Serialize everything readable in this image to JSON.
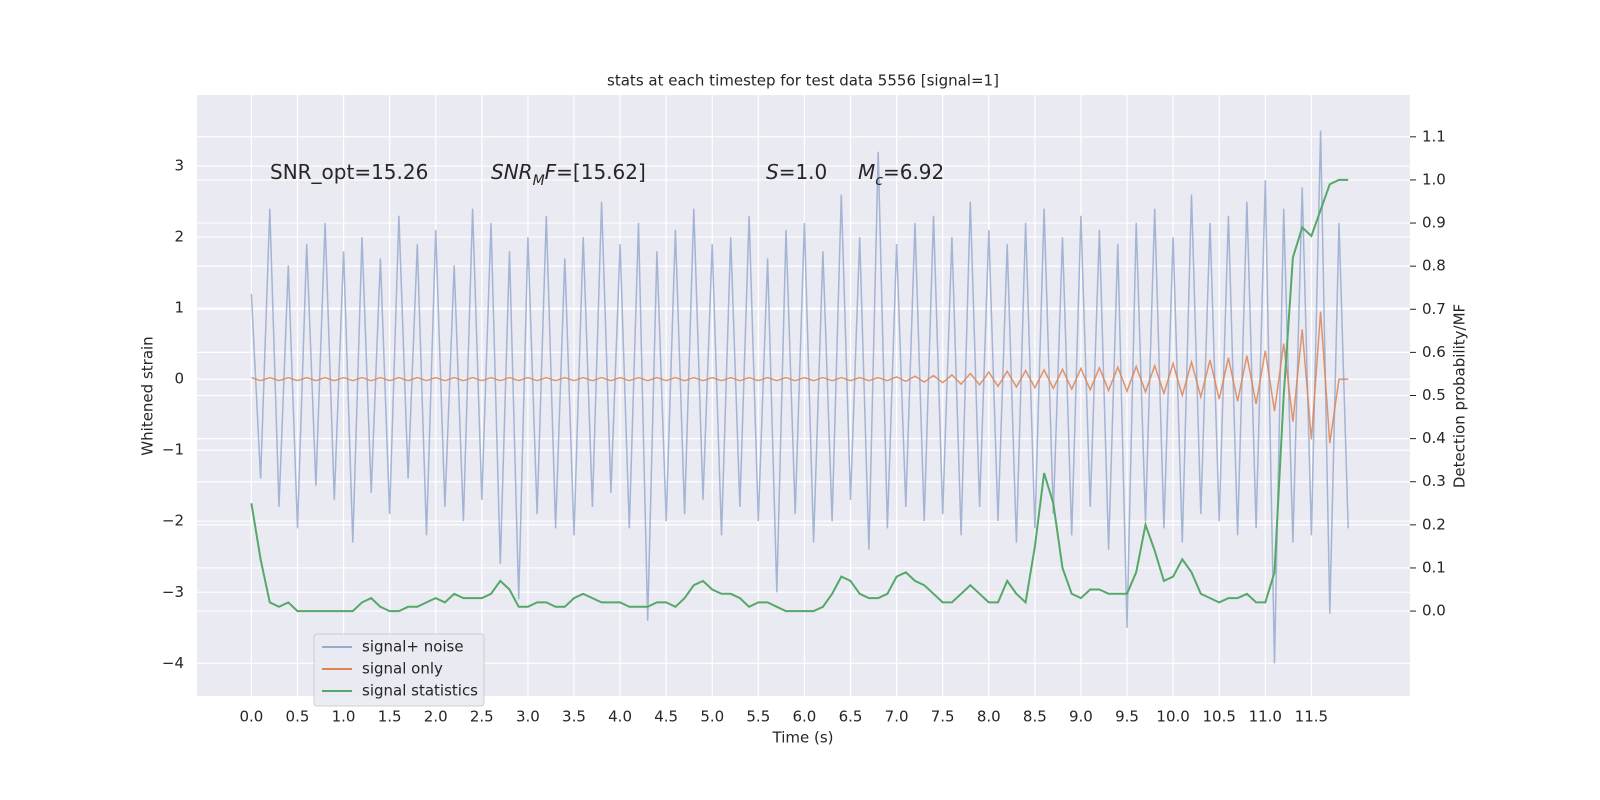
{
  "chart_data": {
    "type": "line",
    "title": "stats at each timestep for test data 5556 [signal=1]",
    "xlabel": "Time (s)",
    "ylabel": "Whitened strain",
    "y2label": "Detection probability/MF",
    "annotations": [
      [
        {
          "text": "SNR_opt=15.26"
        }
      ],
      [
        {
          "text": "SNR",
          "italic": true
        },
        {
          "text": "M",
          "italic": true,
          "sub": true
        },
        {
          "text": "F",
          "italic": true
        },
        {
          "text": "=[15.62]"
        }
      ],
      [
        {
          "text": "S",
          "italic": true
        },
        {
          "text": "=1.0"
        }
      ],
      [
        {
          "text": "M",
          "italic": true
        },
        {
          "text": "c",
          "italic": true,
          "sub": true
        },
        {
          "text": "=6.92"
        }
      ]
    ],
    "legend": "lower left",
    "grid": true,
    "xlim": [
      -0.59,
      12.57
    ],
    "ylim": [
      -4.46,
      4.0
    ],
    "y2lim": [
      -0.197,
      1.197
    ],
    "xticks": [
      {
        "value": 0,
        "label": "0.0"
      },
      0.5,
      {
        "value": 1,
        "label": "1.0"
      },
      1.5,
      {
        "value": 2,
        "label": "2.0"
      },
      2.5,
      {
        "value": 3,
        "label": "3.0"
      },
      3.5,
      {
        "value": 4,
        "label": "4.0"
      },
      4.5,
      {
        "value": 5,
        "label": "5.0"
      },
      5.5,
      {
        "value": 6,
        "label": "6.0"
      },
      6.5,
      {
        "value": 7,
        "label": "7.0"
      },
      7.5,
      {
        "value": 8,
        "label": "8.0"
      },
      8.5,
      {
        "value": 9,
        "label": "9.0"
      },
      9.5,
      {
        "value": 10,
        "label": "10.0"
      },
      10.5,
      {
        "value": 11,
        "label": "11.0"
      },
      11.5
    ],
    "yticks": [
      {
        "value": -4,
        "label": "−4"
      },
      {
        "value": -3,
        "label": "−3"
      },
      {
        "value": -2,
        "label": "−2"
      },
      {
        "value": -1,
        "label": "−1"
      },
      0,
      1,
      2,
      3
    ],
    "y2ticks": [
      {
        "value": 0,
        "label": "0.0"
      },
      0.1,
      0.2,
      0.3,
      0.4,
      0.5,
      0.6,
      0.7,
      0.8,
      0.9,
      {
        "value": 1,
        "label": "1.0"
      },
      1.1
    ],
    "x": [
      0,
      0.1,
      0.2,
      0.3,
      0.4,
      0.5,
      0.6,
      0.7,
      0.8,
      0.9,
      1,
      1.1,
      1.2,
      1.3,
      1.4,
      1.5,
      1.6,
      1.7,
      1.8,
      1.9,
      2,
      2.1,
      2.2,
      2.3,
      2.4,
      2.5,
      2.6,
      2.7,
      2.8,
      2.9,
      3,
      3.1,
      3.2,
      3.3,
      3.4,
      3.5,
      3.6,
      3.7,
      3.8,
      3.9,
      4,
      4.1,
      4.2,
      4.3,
      4.4,
      4.5,
      4.6,
      4.7,
      4.8,
      4.9,
      5,
      5.1,
      5.2,
      5.3,
      5.4,
      5.5,
      5.6,
      5.7,
      5.8,
      5.9,
      6,
      6.1,
      6.2,
      6.3,
      6.4,
      6.5,
      6.6,
      6.7,
      6.8,
      6.9,
      7,
      7.1,
      7.2,
      7.3,
      7.4,
      7.5,
      7.6,
      7.7,
      7.8,
      7.9,
      8,
      8.1,
      8.2,
      8.3,
      8.4,
      8.5,
      8.6,
      8.7,
      8.8,
      8.9,
      9,
      9.1,
      9.2,
      9.3,
      9.4,
      9.5,
      9.6,
      9.7,
      9.8,
      9.9,
      10,
      10.1,
      10.2,
      10.3,
      10.4,
      10.5,
      10.6,
      10.7,
      10.8,
      10.9,
      11,
      11.1,
      11.2,
      11.3,
      11.4,
      11.5,
      11.6,
      11.7,
      11.8,
      11.9
    ],
    "series": [
      {
        "name": "signal+ noise",
        "color": "#98aacf",
        "values": [
          1.2,
          -1.4,
          2.4,
          -1.8,
          1.6,
          -2.1,
          1.9,
          -1.5,
          2.2,
          -1.7,
          1.8,
          -2.3,
          2.0,
          -1.6,
          1.7,
          -1.9,
          2.3,
          -1.4,
          1.9,
          -2.2,
          2.1,
          -1.8,
          1.6,
          -2.0,
          2.4,
          -1.7,
          2.2,
          -2.6,
          1.8,
          -3.1,
          2.0,
          -1.9,
          2.3,
          -2.1,
          1.7,
          -2.2,
          2.0,
          -1.8,
          2.5,
          -1.6,
          1.9,
          -2.1,
          2.2,
          -3.4,
          1.8,
          -2.0,
          2.1,
          -1.9,
          2.4,
          -1.7,
          1.9,
          -2.2,
          2.0,
          -1.8,
          2.3,
          -2.0,
          1.7,
          -3.0,
          2.1,
          -1.9,
          2.2,
          -2.3,
          1.8,
          -2.0,
          2.6,
          -1.7,
          2.0,
          -2.4,
          3.2,
          -2.1,
          1.9,
          -1.8,
          2.2,
          -2.0,
          2.3,
          -1.9,
          2.0,
          -2.2,
          2.5,
          -1.8,
          2.1,
          -2.0,
          1.9,
          -2.3,
          2.2,
          -2.1,
          2.4,
          -1.9,
          2.0,
          -2.2,
          2.3,
          -1.8,
          2.1,
          -2.4,
          1.9,
          -3.5,
          2.2,
          -2.0,
          2.4,
          -2.1,
          2.0,
          -2.3,
          2.6,
          -1.9,
          2.2,
          -2.0,
          2.3,
          -2.2,
          2.5,
          -2.1,
          2.8,
          -4.0,
          2.4,
          -2.3,
          2.7,
          -2.2,
          3.5,
          -3.3,
          2.2,
          -2.1
        ]
      },
      {
        "name": "signal only",
        "color": "#dd8452",
        "values": [
          0.02,
          -0.02,
          0.02,
          -0.02,
          0.02,
          -0.02,
          0.02,
          -0.02,
          0.02,
          -0.02,
          0.02,
          -0.02,
          0.02,
          -0.02,
          0.02,
          -0.02,
          0.02,
          -0.02,
          0.02,
          -0.02,
          0.02,
          -0.02,
          0.02,
          -0.02,
          0.02,
          -0.02,
          0.02,
          -0.02,
          0.02,
          -0.02,
          0.02,
          -0.02,
          0.02,
          -0.02,
          0.02,
          -0.02,
          0.02,
          -0.02,
          0.02,
          -0.02,
          0.02,
          -0.02,
          0.02,
          -0.02,
          0.02,
          -0.02,
          0.02,
          -0.02,
          0.02,
          -0.02,
          0.02,
          -0.02,
          0.02,
          -0.02,
          0.02,
          -0.02,
          0.02,
          -0.02,
          0.02,
          -0.02,
          0.02,
          -0.02,
          0.02,
          -0.02,
          0.02,
          -0.02,
          0.02,
          -0.02,
          0.02,
          -0.02,
          0.03,
          -0.03,
          0.04,
          -0.04,
          0.05,
          -0.05,
          0.06,
          -0.07,
          0.08,
          -0.08,
          0.1,
          -0.1,
          0.11,
          -0.11,
          0.12,
          -0.12,
          0.13,
          -0.13,
          0.14,
          -0.14,
          0.15,
          -0.15,
          0.16,
          -0.16,
          0.17,
          -0.17,
          0.18,
          -0.18,
          0.19,
          -0.2,
          0.22,
          -0.23,
          0.24,
          -0.25,
          0.27,
          -0.28,
          0.3,
          -0.31,
          0.33,
          -0.35,
          0.4,
          -0.45,
          0.5,
          -0.6,
          0.7,
          -0.85,
          0.95,
          -0.9,
          0.0,
          0.0
        ]
      },
      {
        "name": "signal statistics",
        "color": "#55a868",
        "axis": "y2",
        "values": [
          0.25,
          0.12,
          0.02,
          0.01,
          0.02,
          0.0,
          0.0,
          0.0,
          0.0,
          0.0,
          0.0,
          0.0,
          0.02,
          0.03,
          0.01,
          0.0,
          0.0,
          0.01,
          0.01,
          0.02,
          0.03,
          0.02,
          0.04,
          0.03,
          0.03,
          0.03,
          0.04,
          0.07,
          0.05,
          0.01,
          0.01,
          0.02,
          0.02,
          0.01,
          0.01,
          0.03,
          0.04,
          0.03,
          0.02,
          0.02,
          0.02,
          0.01,
          0.01,
          0.01,
          0.02,
          0.02,
          0.01,
          0.03,
          0.06,
          0.07,
          0.05,
          0.04,
          0.04,
          0.03,
          0.01,
          0.02,
          0.02,
          0.01,
          0.0,
          0.0,
          0.0,
          0.0,
          0.01,
          0.04,
          0.08,
          0.07,
          0.04,
          0.03,
          0.03,
          0.04,
          0.08,
          0.09,
          0.07,
          0.06,
          0.04,
          0.02,
          0.02,
          0.04,
          0.06,
          0.04,
          0.02,
          0.02,
          0.07,
          0.04,
          0.02,
          0.15,
          0.32,
          0.25,
          0.1,
          0.04,
          0.03,
          0.05,
          0.05,
          0.04,
          0.04,
          0.04,
          0.09,
          0.2,
          0.14,
          0.07,
          0.08,
          0.12,
          0.09,
          0.04,
          0.03,
          0.02,
          0.03,
          0.03,
          0.04,
          0.02,
          0.02,
          0.09,
          0.5,
          0.82,
          0.89,
          0.87,
          0.93,
          0.99,
          1.0,
          1.0
        ]
      }
    ]
  }
}
